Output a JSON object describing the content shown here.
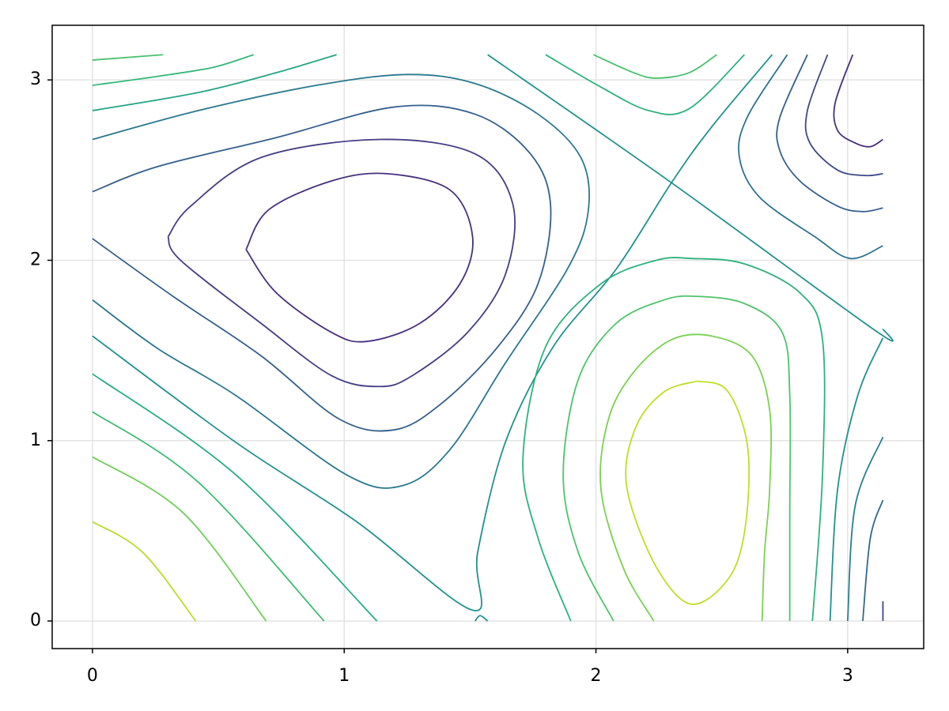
{
  "chart_data": {
    "type": "contour",
    "xlim": [
      -0.16,
      3.302
    ],
    "ylim": [
      -0.153,
      3.303
    ],
    "xticks": [
      0,
      1,
      2,
      3
    ],
    "yticks": [
      0,
      1,
      2,
      3
    ],
    "grid": true,
    "contours": [
      {
        "color": "#4ac16d",
        "x": [
          0,
          0.28
        ],
        "y": [
          3.11,
          3.14
        ]
      },
      {
        "color": "#35b779",
        "x": [
          0,
          0.26,
          0.48,
          0.64
        ],
        "y": [
          2.97,
          3.02,
          3.07,
          3.14
        ]
      },
      {
        "color": "#25a584",
        "x": [
          0,
          0.42,
          0.73,
          0.97
        ],
        "y": [
          2.83,
          2.93,
          3.04,
          3.14
        ]
      },
      {
        "color": "#2a788e",
        "x": [
          0,
          0.42,
          0.89,
          1.25,
          1.52,
          1.77,
          1.94,
          1.97,
          1.89,
          1.64,
          1.42,
          1.23,
          1.01,
          0.57,
          0.26,
          0
        ],
        "y": [
          2.67,
          2.83,
          2.97,
          3.03,
          2.98,
          2.81,
          2.57,
          2.28,
          1.96,
          1.43,
          0.95,
          0.75,
          0.81,
          1.25,
          1.51,
          1.78
        ]
      },
      {
        "color": "#355f8d",
        "x": [
          0,
          0.26,
          0.73,
          1.2,
          1.52,
          1.74,
          1.82,
          1.77,
          1.61,
          1.39,
          1.2,
          0.98,
          0.67,
          0.32,
          0
        ],
        "y": [
          2.38,
          2.52,
          2.68,
          2.85,
          2.81,
          2.59,
          2.3,
          1.87,
          1.52,
          1.21,
          1.06,
          1.12,
          1.47,
          1.8,
          2.12
        ]
      },
      {
        "color": "#433e85",
        "x": [
          0.3,
          0.39,
          0.67,
          1.14,
          1.52,
          1.67,
          1.64,
          1.49,
          1.27,
          1.14,
          0.95,
          0.67,
          0.35,
          0.3
        ],
        "y": [
          2.13,
          2.3,
          2.57,
          2.67,
          2.59,
          2.31,
          1.92,
          1.6,
          1.36,
          1.3,
          1.36,
          1.65,
          2.0,
          2.13
        ]
      },
      {
        "color": "#46307e",
        "x": [
          0.61,
          0.7,
          0.95,
          1.17,
          1.42,
          1.51,
          1.46,
          1.3,
          1.09,
          0.95,
          0.73,
          0.61
        ],
        "y": [
          2.06,
          2.28,
          2.44,
          2.48,
          2.39,
          2.13,
          1.87,
          1.65,
          1.55,
          1.6,
          1.82,
          2.06
        ]
      },
      {
        "color": "#21918c",
        "x": [
          0,
          0.57,
          1.05,
          1.51,
          1.53,
          1.64,
          1.83,
          2.08,
          2.3,
          2.46,
          2.7
        ],
        "y": [
          1.58,
          0.99,
          0.55,
          0.06,
          0.38,
          0.99,
          1.52,
          1.95,
          2.43,
          2.74,
          3.14
        ]
      },
      {
        "color": "#21918c",
        "x": [
          1.57,
          2.3,
          3.11,
          3.14
        ],
        "y": [
          3.14,
          2.43,
          1.61,
          1.62
        ]
      },
      {
        "color": "#21918c",
        "x": [
          1.52,
          1.54,
          1.57
        ],
        "y": [
          0,
          0.03,
          0
        ]
      },
      {
        "color": "#28ae80",
        "x": [
          0,
          0.57,
          1.13
        ],
        "y": [
          1.37,
          0.81,
          0
        ]
      },
      {
        "color": "#3fbc73",
        "x": [
          0,
          0.42,
          0.92
        ],
        "y": [
          1.16,
          0.77,
          0
        ]
      },
      {
        "color": "#6ece58",
        "x": [
          0,
          0.36,
          0.69
        ],
        "y": [
          0.91,
          0.6,
          0
        ]
      },
      {
        "color": "#b5de2b",
        "x": [
          0,
          0.2,
          0.41
        ],
        "y": [
          0.55,
          0.38,
          0
        ]
      },
      {
        "color": "#2db27d",
        "x": [
          1.8,
          2.02,
          2.21,
          2.37,
          2.59
        ],
        "y": [
          3.14,
          2.96,
          2.83,
          2.84,
          3.14
        ]
      },
      {
        "color": "#4ac16d",
        "x": [
          1.99,
          2.15,
          2.24,
          2.37,
          2.48
        ],
        "y": [
          3.14,
          3.04,
          3.01,
          3.04,
          3.14
        ]
      },
      {
        "color": "#2c728e",
        "x": [
          2.76,
          2.6,
          2.57,
          2.65,
          2.87,
          3.01,
          3.14
        ],
        "y": [
          3.14,
          2.79,
          2.57,
          2.35,
          2.13,
          2.01,
          2.08
        ]
      },
      {
        "color": "#355f8d",
        "x": [
          2.84,
          2.73,
          2.73,
          2.81,
          2.96,
          3.06,
          3.14
        ],
        "y": [
          3.14,
          2.79,
          2.61,
          2.44,
          2.3,
          2.27,
          2.29
        ]
      },
      {
        "color": "#3e4a89",
        "x": [
          2.92,
          2.84,
          2.85,
          2.96,
          3.07,
          3.14
        ],
        "y": [
          3.14,
          2.83,
          2.65,
          2.5,
          2.47,
          2.48
        ]
      },
      {
        "color": "#46307e",
        "x": [
          3.02,
          2.95,
          2.96,
          3.03,
          3.09,
          3.14
        ],
        "y": [
          3.14,
          2.87,
          2.72,
          2.65,
          2.63,
          2.67
        ]
      },
      {
        "color": "#bddf26",
        "x": [
          2.4,
          2.52,
          2.6,
          2.6,
          2.55,
          2.43,
          2.33,
          2.21,
          2.12,
          2.16,
          2.27,
          2.4
        ],
        "y": [
          1.33,
          1.28,
          0.99,
          0.6,
          0.29,
          0.11,
          0.13,
          0.38,
          0.77,
          1.08,
          1.27,
          1.33
        ]
      },
      {
        "color": "#7ad151",
        "x": [
          2.23,
          2.11,
          2.02,
          2.05,
          2.15,
          2.3,
          2.46,
          2.62,
          2.69,
          2.69,
          2.67,
          2.66
        ],
        "y": [
          0,
          0.29,
          0.73,
          1.12,
          1.38,
          1.56,
          1.58,
          1.47,
          1.17,
          0.73,
          0.38,
          0
        ]
      },
      {
        "color": "#4ec36b",
        "x": [
          2.07,
          1.93,
          1.87,
          1.93,
          2.08,
          2.27,
          2.4,
          2.59,
          2.74,
          2.77,
          2.77,
          2.77
        ],
        "y": [
          0,
          0.38,
          0.81,
          1.34,
          1.65,
          1.78,
          1.8,
          1.76,
          1.6,
          1.25,
          0.6,
          0
        ]
      },
      {
        "color": "#2db27d",
        "x": [
          1.9,
          1.77,
          1.71,
          1.8,
          2.02,
          2.24,
          2.38,
          2.59,
          2.81,
          2.9,
          2.9,
          2.86
        ],
        "y": [
          0,
          0.46,
          0.9,
          1.52,
          1.87,
          2.0,
          2.01,
          1.98,
          1.82,
          1.56,
          0.81,
          0
        ]
      },
      {
        "color": "#21918c",
        "x": [
          2.93,
          2.96,
          3.04,
          3.14
        ],
        "y": [
          0,
          0.73,
          1.25,
          1.57
        ]
      },
      {
        "color": "#277f8e",
        "x": [
          3.0,
          3.03,
          3.14
        ],
        "y": [
          0,
          0.64,
          1.02
        ]
      },
      {
        "color": "#31688e",
        "x": [
          3.06,
          3.09,
          3.14
        ],
        "y": [
          0,
          0.46,
          0.67
        ]
      },
      {
        "color": "#3e4a89",
        "x": [
          3.14,
          3.14
        ],
        "y": [
          0,
          0.11
        ]
      }
    ]
  }
}
